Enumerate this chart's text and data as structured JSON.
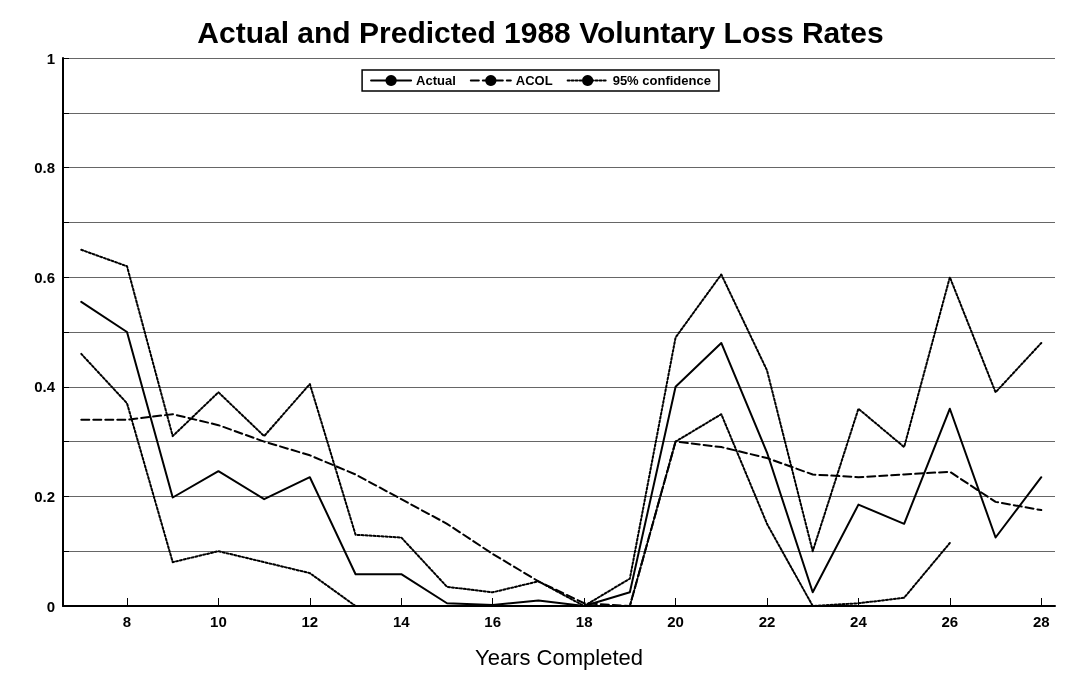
{
  "chart_data": {
    "type": "line",
    "title": "Actual and Predicted 1988 Voluntary Loss Rates",
    "xlabel": "Years Completed",
    "x": [
      7,
      8,
      9,
      10,
      11,
      12,
      13,
      14,
      15,
      16,
      17,
      18,
      19,
      20,
      21,
      22,
      23,
      24,
      25,
      26,
      27,
      28
    ],
    "series": [
      {
        "name": "Actual",
        "color": "#000000",
        "line_style": "solid",
        "values": [
          0.555,
          0.5,
          0.198,
          0.246,
          0.195,
          0.235,
          0.058,
          0.058,
          0.005,
          0.002,
          0.01,
          0,
          0.025,
          0.4,
          0.48,
          0.28,
          0.025,
          0.185,
          0.15,
          0.36,
          0.125,
          0.235
        ]
      },
      {
        "name": "ACOL",
        "color": "#000000",
        "line_style": "dashed",
        "values": [
          0.34,
          0.34,
          0.35,
          0.33,
          0.3,
          0.275,
          0.24,
          0.195,
          0.15,
          0.095,
          0.045,
          0.005,
          0,
          0.3,
          0.29,
          0.27,
          0.24,
          0.235,
          0.24,
          0.245,
          0.19,
          0.175
        ]
      },
      {
        "name": "95% confidence",
        "color": "#000000",
        "line_style": "dotted",
        "values": [
          0.65,
          0.62,
          0.31,
          0.39,
          0.31,
          0.405,
          0.13,
          0.125,
          0.035,
          0.025,
          0.045,
          0,
          0.05,
          0.49,
          0.605,
          0.43,
          0.1,
          0.36,
          0.29,
          0.6,
          0.39,
          0.48
        ]
      },
      {
        "color": "#000000",
        "line_style": "dotted",
        "values": [
          0.46,
          0.37,
          0.08,
          0.1,
          0.08,
          0.06,
          0,
          null,
          null,
          null,
          null,
          0,
          0,
          0.3,
          0.35,
          0.15,
          0,
          0.005,
          0.015,
          0.115,
          null,
          null
        ]
      }
    ],
    "xlim": [
      6.6,
      28.3
    ],
    "xticks": [
      8,
      10,
      12,
      14,
      16,
      18,
      20,
      22,
      24,
      26,
      28
    ],
    "ylim": [
      0,
      1
    ],
    "yticks": [
      0,
      {
        "value": 0.1,
        "label": null
      },
      0.2,
      {
        "value": 0.3,
        "label": null
      },
      0.4,
      {
        "value": 0.5,
        "label": null
      },
      0.6,
      {
        "value": 0.7,
        "label": null
      },
      0.8,
      {
        "value": 0.9,
        "label": null
      },
      1
    ],
    "grid": "y",
    "legend": "top",
    "marker": "none"
  }
}
